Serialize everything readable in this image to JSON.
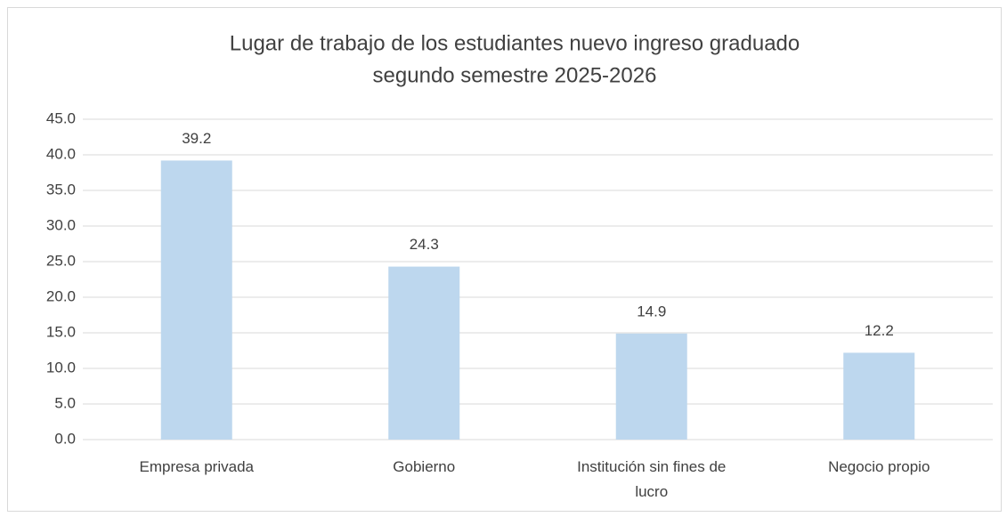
{
  "chart_data": {
    "type": "bar",
    "title": [
      "Lugar de trabajo de los estudiantes nuevo ingreso graduado",
      "segundo semestre 2025-2026"
    ],
    "categories": [
      "Empresa privada",
      "Gobierno",
      "Institución sin fines de lucro",
      "Negocio propio"
    ],
    "values": [
      39.2,
      24.3,
      14.9,
      12.2
    ],
    "color": "#bdd7ee",
    "ylim": [
      0,
      45
    ],
    "yticks": [
      {
        "value": 0,
        "label": "0.0"
      },
      {
        "value": 5,
        "label": "5.0"
      },
      {
        "value": 10,
        "label": "10.0"
      },
      {
        "value": 15,
        "label": "15.0"
      },
      {
        "value": 20,
        "label": "20.0"
      },
      {
        "value": 25,
        "label": "25.0"
      },
      {
        "value": 30,
        "label": "30.0"
      },
      {
        "value": 35,
        "label": "35.0"
      },
      {
        "value": 40,
        "label": "40.0"
      },
      {
        "value": 45,
        "label": "45.0"
      }
    ],
    "grid": true
  }
}
